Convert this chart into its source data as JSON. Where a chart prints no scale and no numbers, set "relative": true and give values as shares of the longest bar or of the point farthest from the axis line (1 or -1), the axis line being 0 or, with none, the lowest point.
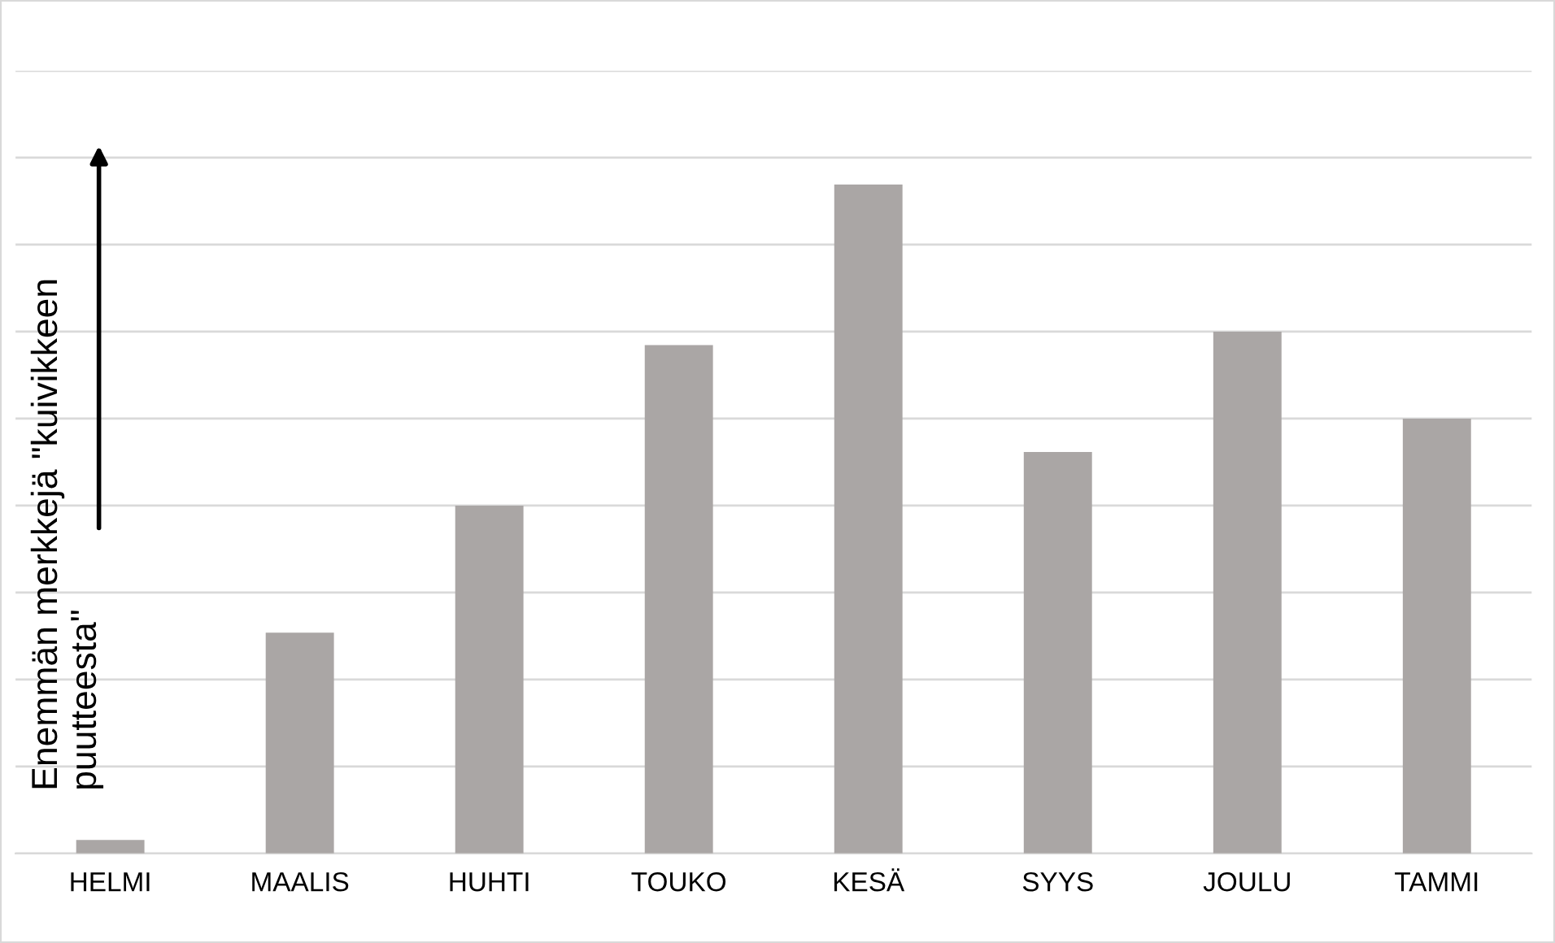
{
  "chart_data": {
    "type": "bar",
    "relative": true,
    "categories": [
      "HELMI",
      "MAALIS",
      "HUHTI",
      "TOUKO",
      "KESÄ",
      "SYYS",
      "JOULU",
      "TAMMI"
    ],
    "values": [
      0.02,
      0.33,
      0.52,
      0.76,
      1,
      0.6,
      0.78,
      0.65
    ],
    "color": "#aaa6a5",
    "ylabel": "Enemmän merkkejä \"kuivikkeen\npuutteesta\"",
    "grid": "y"
  }
}
